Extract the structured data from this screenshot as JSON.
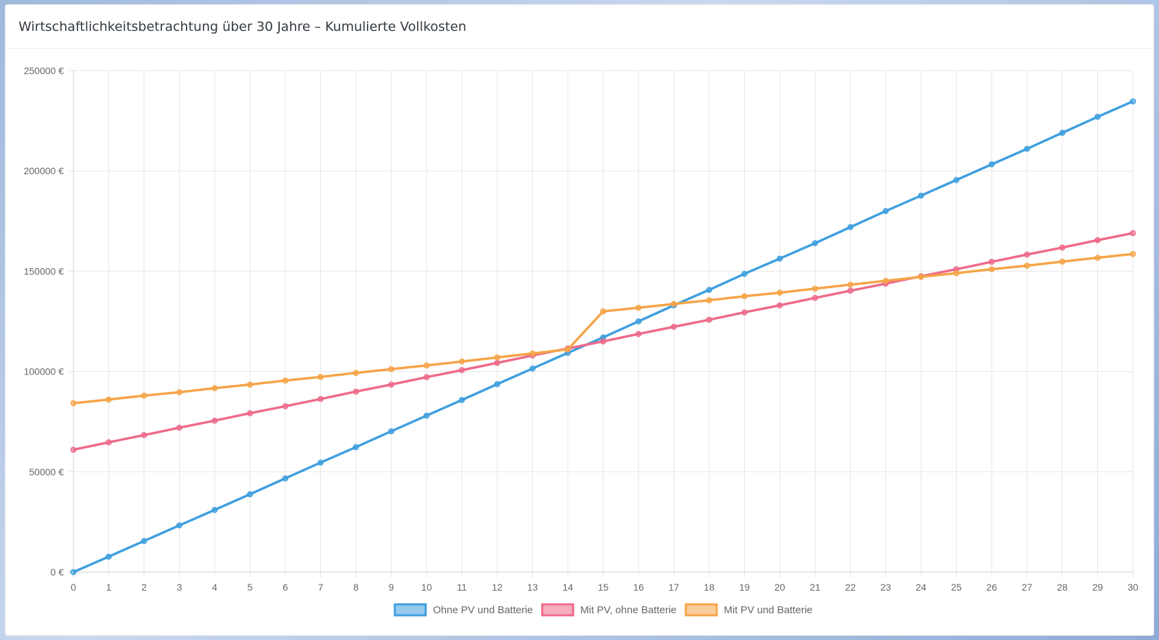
{
  "card": {
    "title": "Wirtschaftlichkeitsbetrachtung über 30 Jahre – Kumulierte Vollkosten"
  },
  "chart_data": {
    "type": "line",
    "title": "",
    "xlabel": "",
    "ylabel": "",
    "x": [
      0,
      1,
      2,
      3,
      4,
      5,
      6,
      7,
      8,
      9,
      10,
      11,
      12,
      13,
      14,
      15,
      16,
      17,
      18,
      19,
      20,
      21,
      22,
      23,
      24,
      25,
      26,
      27,
      28,
      29,
      30
    ],
    "ylim": [
      0,
      250000
    ],
    "y_ticks": [
      0,
      50000,
      100000,
      150000,
      200000,
      250000
    ],
    "y_tick_labels": [
      "0 €",
      "50000 €",
      "100000 €",
      "150000 €",
      "200000 €",
      "250000 €"
    ],
    "grid": true,
    "legend_position": "bottom",
    "series": [
      {
        "name": "Ohne PV und Batterie",
        "color": "#3e9fdf",
        "values": [
          0,
          7700,
          15500,
          23300,
          31000,
          38800,
          46700,
          54600,
          62300,
          70200,
          78000,
          85800,
          93700,
          101500,
          109300,
          117000,
          125000,
          133000,
          140700,
          148700,
          156300,
          164000,
          172000,
          180000,
          187700,
          195500,
          203300,
          211000,
          219000,
          227000,
          234700
        ]
      },
      {
        "name": "Mit PV, ohne Batterie",
        "color": "#ee6a8a",
        "values": [
          61000,
          64700,
          68300,
          72000,
          75500,
          79200,
          82700,
          86300,
          90000,
          93500,
          97200,
          100700,
          104300,
          108000,
          111500,
          115000,
          118700,
          122300,
          125800,
          129500,
          133000,
          136700,
          140300,
          143800,
          147500,
          151000,
          154700,
          158300,
          161800,
          165500,
          169000
        ]
      },
      {
        "name": "Mit PV und Batterie",
        "color": "#f5a447",
        "values": [
          84200,
          86000,
          88000,
          89700,
          91700,
          93500,
          95500,
          97300,
          99300,
          101200,
          103000,
          105000,
          107000,
          109000,
          111000,
          130000,
          131800,
          133700,
          135500,
          137500,
          139300,
          141300,
          143300,
          145200,
          147200,
          149000,
          151000,
          152800,
          154800,
          156700,
          158600
        ]
      }
    ]
  }
}
